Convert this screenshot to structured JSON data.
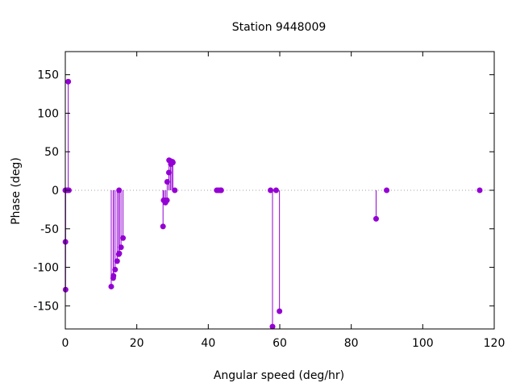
{
  "chart_data": {
    "type": "scatter",
    "style": "impulses-with-points",
    "title": "Station 9448009",
    "xlabel": "Angular speed (deg/hr)",
    "ylabel": "Phase (deg)",
    "xlim": [
      0,
      120
    ],
    "ylim": [
      -180,
      180
    ],
    "x_ticks": [
      0,
      20,
      40,
      60,
      80,
      100,
      120
    ],
    "y_ticks": [
      -150,
      -100,
      -50,
      0,
      50,
      100,
      150
    ],
    "x_tick_labels": [
      "0",
      "20",
      "40",
      "60",
      "80",
      "100",
      "120"
    ],
    "y_tick_labels": [
      "-150",
      "-100",
      "-50",
      "0",
      "50",
      "100",
      "150"
    ],
    "zero_line": "dotted",
    "grid": false,
    "legend": "none",
    "colors": {
      "series": "#9400d3",
      "axis": "#000000",
      "zero_line": "#a0a0a0"
    },
    "points": [
      {
        "x": 0.0,
        "y": 0
      },
      {
        "x": 0.04,
        "y": -67
      },
      {
        "x": 0.08,
        "y": -129
      },
      {
        "x": 0.5,
        "y": 0
      },
      {
        "x": 0.82,
        "y": 141
      },
      {
        "x": 1.0,
        "y": 0
      },
      {
        "x": 12.85,
        "y": -125
      },
      {
        "x": 13.4,
        "y": -114
      },
      {
        "x": 13.47,
        "y": -111
      },
      {
        "x": 13.94,
        "y": -103
      },
      {
        "x": 14.5,
        "y": -92
      },
      {
        "x": 14.96,
        "y": -83
      },
      {
        "x": 15.04,
        "y": 0
      },
      {
        "x": 15.1,
        "y": -82
      },
      {
        "x": 15.59,
        "y": -74
      },
      {
        "x": 16.14,
        "y": -62
      },
      {
        "x": 27.34,
        "y": -47
      },
      {
        "x": 27.5,
        "y": -13
      },
      {
        "x": 27.97,
        "y": -15
      },
      {
        "x": 28.0,
        "y": -16
      },
      {
        "x": 28.44,
        "y": -13
      },
      {
        "x": 28.51,
        "y": 11
      },
      {
        "x": 28.98,
        "y": 23
      },
      {
        "x": 29.03,
        "y": 39
      },
      {
        "x": 29.46,
        "y": 38
      },
      {
        "x": 29.53,
        "y": 34
      },
      {
        "x": 29.96,
        "y": 37
      },
      {
        "x": 30.08,
        "y": 36
      },
      {
        "x": 30.63,
        "y": 0
      },
      {
        "x": 42.38,
        "y": 0
      },
      {
        "x": 42.93,
        "y": 0
      },
      {
        "x": 43.48,
        "y": 0
      },
      {
        "x": 43.6,
        "y": 0
      },
      {
        "x": 57.42,
        "y": 0
      },
      {
        "x": 57.97,
        "y": -177
      },
      {
        "x": 58.98,
        "y": 0
      },
      {
        "x": 59.92,
        "y": -157
      },
      {
        "x": 86.95,
        "y": -37
      },
      {
        "x": 89.9,
        "y": 0
      },
      {
        "x": 115.94,
        "y": 0
      }
    ]
  }
}
